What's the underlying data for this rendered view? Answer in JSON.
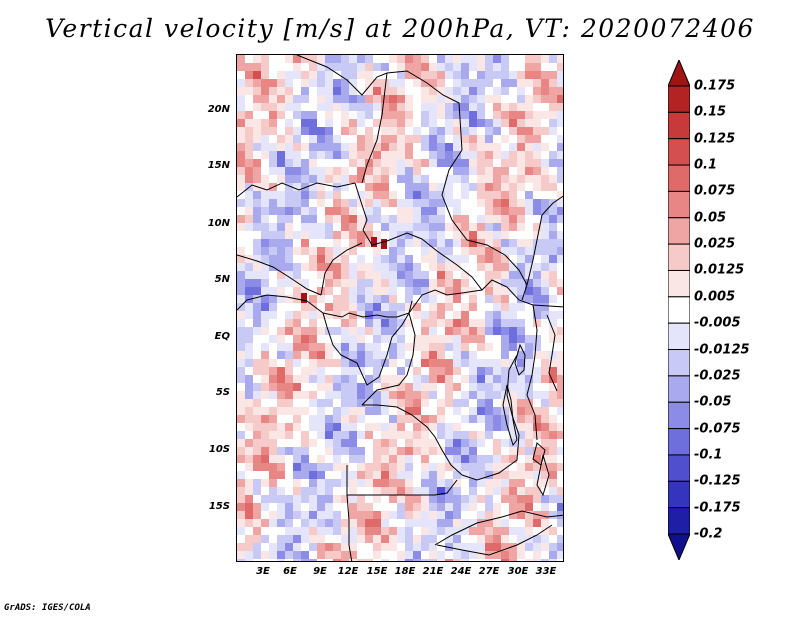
{
  "title": "Vertical velocity [m/s] at 200hPa, VT: 2020072406",
  "credit": "GrADS: IGES/COLA",
  "map": {
    "lat_labels": [
      "20N",
      "15N",
      "10N",
      "5N",
      "EQ",
      "5S",
      "10S",
      "15S"
    ],
    "lon_labels": [
      "3E",
      "6E",
      "9E",
      "12E",
      "15E",
      "18E",
      "21E",
      "24E",
      "27E",
      "30E",
      "33E"
    ]
  },
  "colorbar": {
    "labels": [
      "0.175",
      "0.15",
      "0.125",
      "0.1",
      "0.075",
      "0.05",
      "0.025",
      "0.0125",
      "0.005",
      "-0.005",
      "-0.0125",
      "-0.025",
      "-0.05",
      "-0.075",
      "-0.1",
      "-0.125",
      "-0.175",
      "-0.2"
    ],
    "colors": [
      "#a01414",
      "#b42323",
      "#c63a3a",
      "#d45050",
      "#df6a6a",
      "#e88686",
      "#f0a5a5",
      "#f7caca",
      "#fbe6e6",
      "#ffffff",
      "#e4e4fb",
      "#c9c9f5",
      "#a9a9ee",
      "#8c8ce6",
      "#6e6edd",
      "#5050cf",
      "#3434bd",
      "#1e1ea6",
      "#10108e"
    ]
  }
}
